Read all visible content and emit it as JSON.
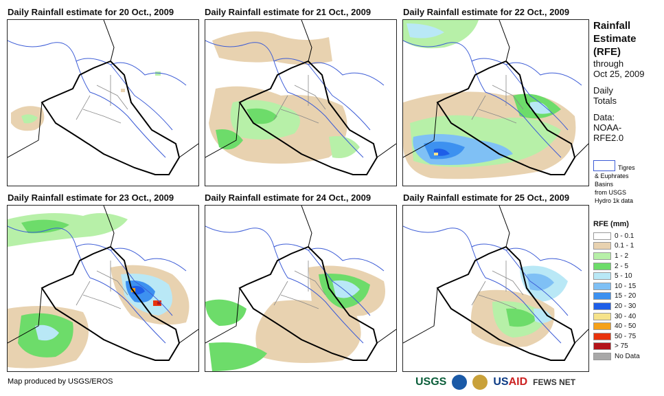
{
  "panels": [
    {
      "title": "Daily Rainfall estimate for 20 Oct., 2009"
    },
    {
      "title": "Daily Rainfall estimate for 21 Oct., 2009"
    },
    {
      "title": "Daily Rainfall estimate for 22 Oct., 2009"
    },
    {
      "title": "Daily Rainfall estimate for 23 Oct., 2009"
    },
    {
      "title": "Daily Rainfall estimate for 24 Oct., 2009"
    },
    {
      "title": "Daily Rainfall estimate for 25 Oct., 2009"
    }
  ],
  "side": {
    "line1": "Rainfall",
    "line2": "Estimate",
    "line3": "(RFE)",
    "line4": "through",
    "line5": "Oct 25, 2009",
    "line6": "Daily",
    "line7": "Totals",
    "line8": "Data:",
    "line9": "NOAA-",
    "line10": "RFE2.0"
  },
  "basin": {
    "line1": "Tigres",
    "line2": "& Euphrates",
    "line3": "Basins",
    "line4": "from USGS",
    "line5": "Hydro 1k data"
  },
  "legend": {
    "title": "RFE (mm)",
    "items": [
      {
        "label": "0 - 0.1",
        "color": "#ffffff"
      },
      {
        "label": "0.1 - 1",
        "color": "#e8d2b0"
      },
      {
        "label": "1 - 2",
        "color": "#b7f0a8"
      },
      {
        "label": "2 - 5",
        "color": "#6ddc6a"
      },
      {
        "label": "5 - 10",
        "color": "#b9e8f6"
      },
      {
        "label": "10 - 15",
        "color": "#7fc0f5"
      },
      {
        "label": "15 - 20",
        "color": "#3d91f0"
      },
      {
        "label": "20 - 30",
        "color": "#1e5ee8"
      },
      {
        "label": "30 - 40",
        "color": "#f6e38a"
      },
      {
        "label": "40 - 50",
        "color": "#f5a11a"
      },
      {
        "label": "50 - 75",
        "color": "#e8330e"
      },
      {
        "label": "> 75",
        "color": "#b3141a"
      },
      {
        "label": "No Data",
        "color": "#a8a8a8"
      }
    ]
  },
  "footer": {
    "credit": "Map produced by USGS/EROS"
  },
  "logos": {
    "usgs": "USGS",
    "usaid_a": "US",
    "usaid_b": "AID",
    "fews": "FEWS NET"
  }
}
